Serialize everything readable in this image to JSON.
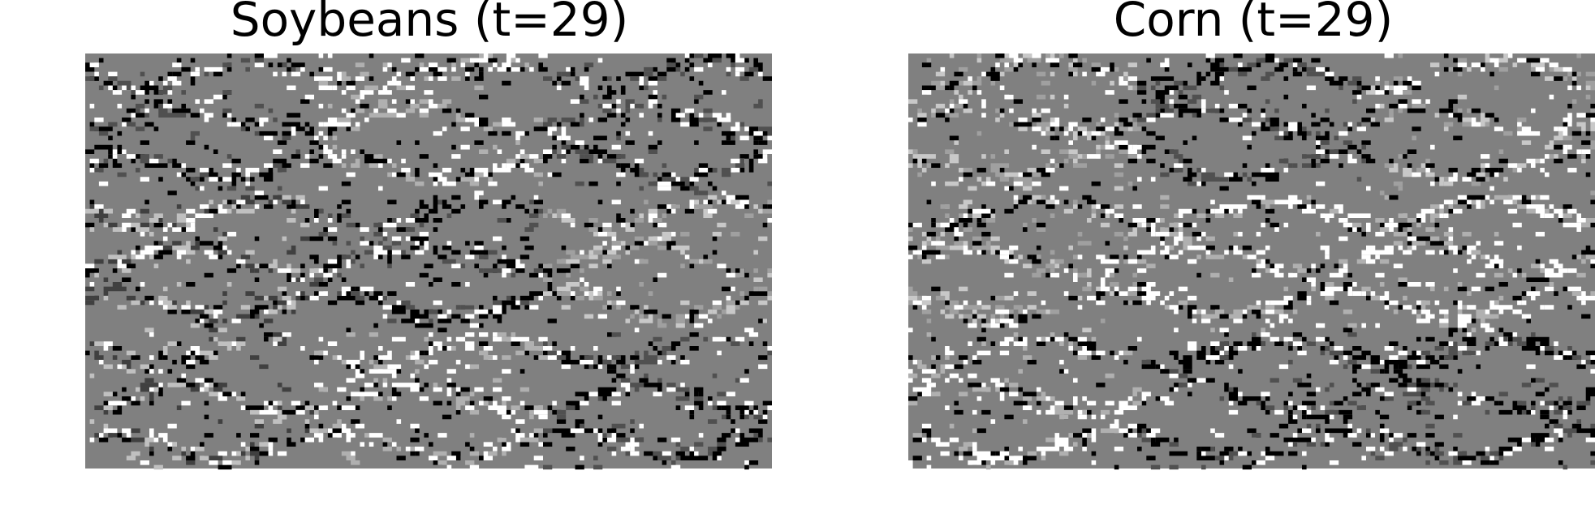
{
  "panels": [
    {
      "title": "Soybeans (t=29)"
    },
    {
      "title": "Corn (t=29)"
    }
  ]
}
